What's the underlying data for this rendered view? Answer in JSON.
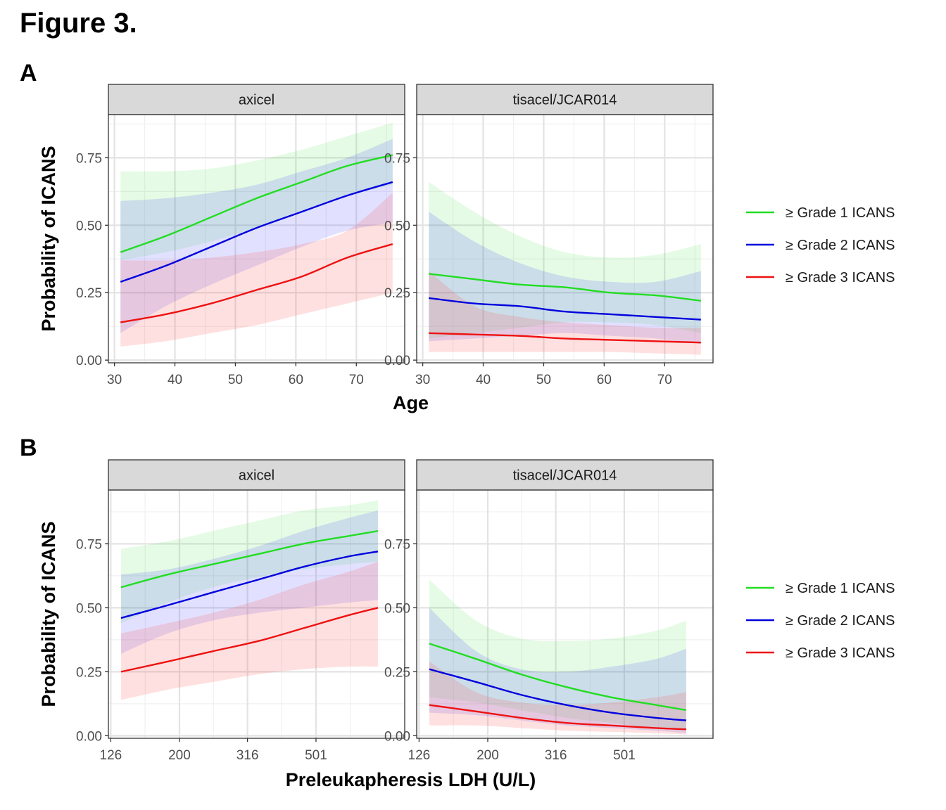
{
  "figure_title": "Figure 3.",
  "colors": {
    "grade1": "#22dd22",
    "grade2": "#0000dd",
    "grade3": "#ee1111",
    "ribbon_grade1": "#33dd33",
    "ribbon_grade2": "#3333ff",
    "ribbon_grade3": "#ff5555",
    "strip_fill": "#d9d9d9"
  },
  "chart_data": [
    {
      "type": "line",
      "panel_label": "A",
      "xlabel": "Age",
      "ylabel": "Probability of ICANS",
      "x_scale": "linear",
      "xlim": [
        29,
        78
      ],
      "ylim": [
        -0.01,
        0.91
      ],
      "x_ticks": [
        30,
        40,
        50,
        60,
        70
      ],
      "x_tick_labels": [
        "30",
        "40",
        "50",
        "60",
        "70"
      ],
      "y_ticks": [
        0,
        0.25,
        0.5,
        0.75
      ],
      "y_tick_labels": [
        "0.00",
        "0.25",
        "0.50",
        "0.75"
      ],
      "grid": true,
      "legend_position": "right",
      "legend": [
        "≥ Grade 1 ICANS",
        "≥ Grade 2 ICANS",
        "≥ Grade 3 ICANS"
      ],
      "facets": [
        {
          "label": "axicel",
          "x": [
            31,
            38.5,
            46,
            53.5,
            61,
            68.5,
            76
          ],
          "series": [
            {
              "name": "≥ Grade 1 ICANS",
              "values": [
                0.4,
                0.46,
                0.53,
                0.6,
                0.66,
                0.72,
                0.76
              ],
              "lower": [
                0.37,
                0.4,
                0.44,
                0.49,
                0.55,
                0.61,
                0.65
              ],
              "upper": [
                0.7,
                0.7,
                0.71,
                0.74,
                0.78,
                0.83,
                0.88
              ]
            },
            {
              "name": "≥ Grade 2 ICANS",
              "values": [
                0.29,
                0.35,
                0.42,
                0.49,
                0.55,
                0.61,
                0.66
              ],
              "lower": [
                0.1,
                0.2,
                0.28,
                0.35,
                0.42,
                0.48,
                0.51
              ],
              "upper": [
                0.59,
                0.6,
                0.62,
                0.65,
                0.7,
                0.75,
                0.82
              ]
            },
            {
              "name": "≥ Grade 3 ICANS",
              "values": [
                0.14,
                0.17,
                0.21,
                0.26,
                0.31,
                0.38,
                0.43
              ],
              "lower": [
                0.05,
                0.07,
                0.1,
                0.13,
                0.17,
                0.21,
                0.25
              ],
              "upper": [
                0.37,
                0.37,
                0.38,
                0.4,
                0.43,
                0.48,
                0.62
              ]
            }
          ]
        },
        {
          "label": "tisacel/JCAR014",
          "x": [
            31,
            38.5,
            46,
            53.5,
            61,
            68.5,
            76
          ],
          "series": [
            {
              "name": "≥ Grade 1 ICANS",
              "values": [
                0.32,
                0.3,
                0.28,
                0.27,
                0.25,
                0.24,
                0.22
              ],
              "lower": [
                0.08,
                0.1,
                0.12,
                0.14,
                0.14,
                0.13,
                0.1
              ],
              "upper": [
                0.66,
                0.55,
                0.46,
                0.4,
                0.38,
                0.39,
                0.43
              ]
            },
            {
              "name": "≥ Grade 2 ICANS",
              "values": [
                0.23,
                0.21,
                0.2,
                0.18,
                0.17,
                0.16,
                0.15
              ],
              "lower": [
                0.07,
                0.08,
                0.09,
                0.1,
                0.09,
                0.08,
                0.06
              ],
              "upper": [
                0.55,
                0.44,
                0.36,
                0.31,
                0.29,
                0.29,
                0.33
              ]
            },
            {
              "name": "≥ Grade 3 ICANS",
              "values": [
                0.1,
                0.095,
                0.09,
                0.08,
                0.075,
                0.07,
                0.065
              ],
              "lower": [
                0.03,
                0.03,
                0.03,
                0.03,
                0.03,
                0.025,
                0.02
              ],
              "upper": [
                0.33,
                0.2,
                0.16,
                0.14,
                0.13,
                0.12,
                0.12
              ]
            }
          ]
        }
      ]
    },
    {
      "type": "line",
      "panel_label": "B",
      "xlabel": "Preleukapheresis LDH (U/L)",
      "ylabel": "Probability of ICANS",
      "x_scale": "log",
      "xlim": [
        124,
        910
      ],
      "ylim": [
        -0.01,
        0.96
      ],
      "x_ticks": [
        126,
        200,
        316,
        501
      ],
      "x_tick_labels": [
        "126",
        "200",
        "316",
        "501"
      ],
      "y_ticks": [
        0,
        0.25,
        0.5,
        0.75
      ],
      "y_tick_labels": [
        "0.00",
        "0.25",
        "0.50",
        "0.75"
      ],
      "grid": true,
      "legend_position": "right",
      "legend": [
        "≥ Grade 1 ICANS",
        "≥ Grade 2 ICANS",
        "≥ Grade 3 ICANS"
      ],
      "facets": [
        {
          "label": "axicel",
          "x": [
            135,
            185,
            250,
            340,
            460,
            620,
            760
          ],
          "series": [
            {
              "name": "≥ Grade 1 ICANS",
              "values": [
                0.58,
                0.63,
                0.67,
                0.71,
                0.75,
                0.78,
                0.8
              ],
              "lower": [
                0.44,
                0.52,
                0.58,
                0.62,
                0.65,
                0.67,
                0.68
              ],
              "upper": [
                0.73,
                0.76,
                0.8,
                0.84,
                0.88,
                0.9,
                0.92
              ]
            },
            {
              "name": "≥ Grade 2 ICANS",
              "values": [
                0.46,
                0.51,
                0.56,
                0.61,
                0.66,
                0.7,
                0.72
              ],
              "lower": [
                0.32,
                0.4,
                0.45,
                0.48,
                0.5,
                0.52,
                0.53
              ],
              "upper": [
                0.63,
                0.65,
                0.69,
                0.74,
                0.8,
                0.85,
                0.88
              ]
            },
            {
              "name": "≥ Grade 3 ICANS",
              "values": [
                0.25,
                0.29,
                0.33,
                0.37,
                0.42,
                0.47,
                0.5
              ],
              "lower": [
                0.14,
                0.18,
                0.21,
                0.24,
                0.26,
                0.27,
                0.27
              ],
              "upper": [
                0.4,
                0.44,
                0.48,
                0.53,
                0.59,
                0.64,
                0.68
              ]
            }
          ]
        },
        {
          "label": "tisacel/JCAR014",
          "x": [
            135,
            185,
            250,
            340,
            460,
            620,
            760
          ],
          "series": [
            {
              "name": "≥ Grade 1 ICANS",
              "values": [
                0.36,
                0.3,
                0.24,
                0.19,
                0.15,
                0.12,
                0.1
              ],
              "lower": [
                0.15,
                0.13,
                0.1,
                0.07,
                0.05,
                0.03,
                0.02
              ],
              "upper": [
                0.61,
                0.45,
                0.38,
                0.37,
                0.38,
                0.41,
                0.45
              ]
            },
            {
              "name": "≥ Grade 2 ICANS",
              "values": [
                0.26,
                0.21,
                0.16,
                0.12,
                0.09,
                0.07,
                0.06
              ],
              "lower": [
                0.09,
                0.08,
                0.06,
                0.04,
                0.03,
                0.02,
                0.01
              ],
              "upper": [
                0.5,
                0.33,
                0.26,
                0.25,
                0.27,
                0.3,
                0.34
              ]
            },
            {
              "name": "≥ Grade 3 ICANS",
              "values": [
                0.12,
                0.095,
                0.07,
                0.05,
                0.04,
                0.03,
                0.025
              ],
              "lower": [
                0.04,
                0.04,
                0.03,
                0.02,
                0.015,
                0.01,
                0.005
              ],
              "upper": [
                0.29,
                0.17,
                0.13,
                0.12,
                0.13,
                0.15,
                0.17
              ]
            }
          ]
        }
      ]
    }
  ]
}
